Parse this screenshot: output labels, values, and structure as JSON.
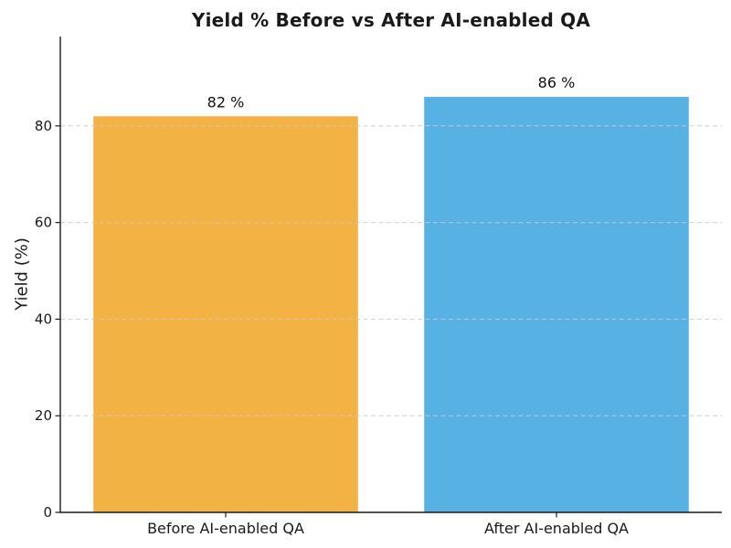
{
  "chart_data": {
    "type": "bar",
    "title": "Yield % Before vs After AI-enabled QA",
    "xlabel": "",
    "ylabel": "Yield (%)",
    "categories": [
      "Before AI-enabled QA",
      "After AI-enabled QA"
    ],
    "values": [
      82,
      86
    ],
    "value_labels": [
      "82 %",
      "86 %"
    ],
    "bar_colors": [
      "#F2B344",
      "#57B2E3"
    ],
    "ylim": [
      0,
      98.5
    ],
    "yticks": [
      0,
      20,
      40,
      60,
      80
    ],
    "grid": "horizontal dashed, drawn over bars",
    "legend_position": "none"
  },
  "colors": {
    "background": "#ffffff",
    "grid_line": "#c9c9c9",
    "axis_spine": "#1a1a1a",
    "tick_label": "#1a1a1a",
    "value_label": "#111111"
  }
}
